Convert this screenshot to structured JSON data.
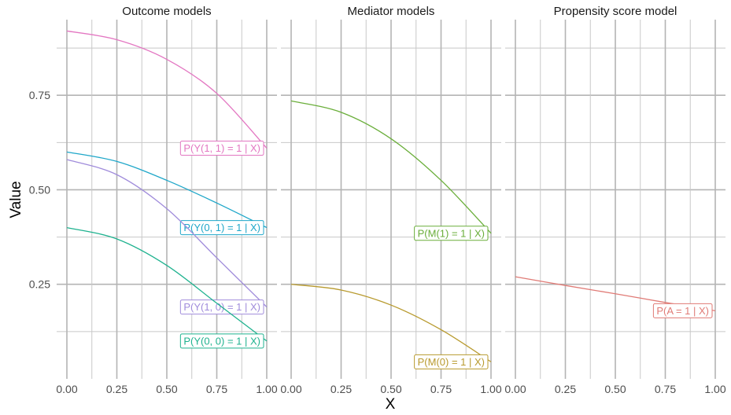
{
  "chart_data": {
    "type": "line",
    "xlabel": "X",
    "ylabel": "Value",
    "panels": [
      {
        "title": "Outcome models",
        "xlim": [
          0,
          1
        ],
        "series": [
          {
            "name": "P(Y(1, 1) = 1 | X)",
            "color": "#E377C2",
            "x": [
              0,
              0.25,
              0.5,
              0.75,
              1.0
            ],
            "y": [
              0.92,
              0.897,
              0.845,
              0.755,
              0.61
            ]
          },
          {
            "name": "P(Y(0, 1) = 1 | X)",
            "color": "#1FA7C9",
            "x": [
              0,
              0.25,
              0.5,
              0.75,
              1.0
            ],
            "y": [
              0.6,
              0.575,
              0.525,
              0.465,
              0.4
            ]
          },
          {
            "name": "P(Y(1, 0) = 1 | X)",
            "color": "#A08CDB",
            "x": [
              0,
              0.25,
              0.5,
              0.75,
              1.0
            ],
            "y": [
              0.58,
              0.54,
              0.45,
              0.32,
              0.19
            ]
          },
          {
            "name": "P(Y(0, 0) = 1 | X)",
            "color": "#1FB28F",
            "x": [
              0,
              0.25,
              0.5,
              0.75,
              1.0
            ],
            "y": [
              0.4,
              0.37,
              0.3,
              0.2,
              0.1
            ]
          }
        ]
      },
      {
        "title": "Mediator models",
        "xlim": [
          0,
          1
        ],
        "series": [
          {
            "name": "P(M(1) = 1 | X)",
            "color": "#6AAE3A",
            "x": [
              0,
              0.25,
              0.5,
              0.75,
              1.0
            ],
            "y": [
              0.735,
              0.705,
              0.635,
              0.525,
              0.385
            ]
          },
          {
            "name": "P(M(0) = 1 | X)",
            "color": "#B89A2E",
            "x": [
              0,
              0.25,
              0.5,
              0.75,
              1.0
            ],
            "y": [
              0.25,
              0.235,
              0.195,
              0.13,
              0.045
            ]
          }
        ]
      },
      {
        "title": "Propensity score model",
        "xlim": [
          0,
          1
        ],
        "series": [
          {
            "name": "P(A = 1 | X)",
            "color": "#E07B76",
            "x": [
              0,
              0.25,
              0.5,
              0.75,
              1.0
            ],
            "y": [
              0.27,
              0.247,
              0.225,
              0.202,
              0.18
            ]
          }
        ]
      }
    ],
    "x_ticks": [
      "0.00",
      "0.25",
      "0.50",
      "0.75",
      "1.00"
    ],
    "y_ticks": [
      "0.25",
      "0.50",
      "0.75"
    ],
    "ylim": [
      0.0,
      0.95
    ],
    "grid": true,
    "legend": "none"
  }
}
